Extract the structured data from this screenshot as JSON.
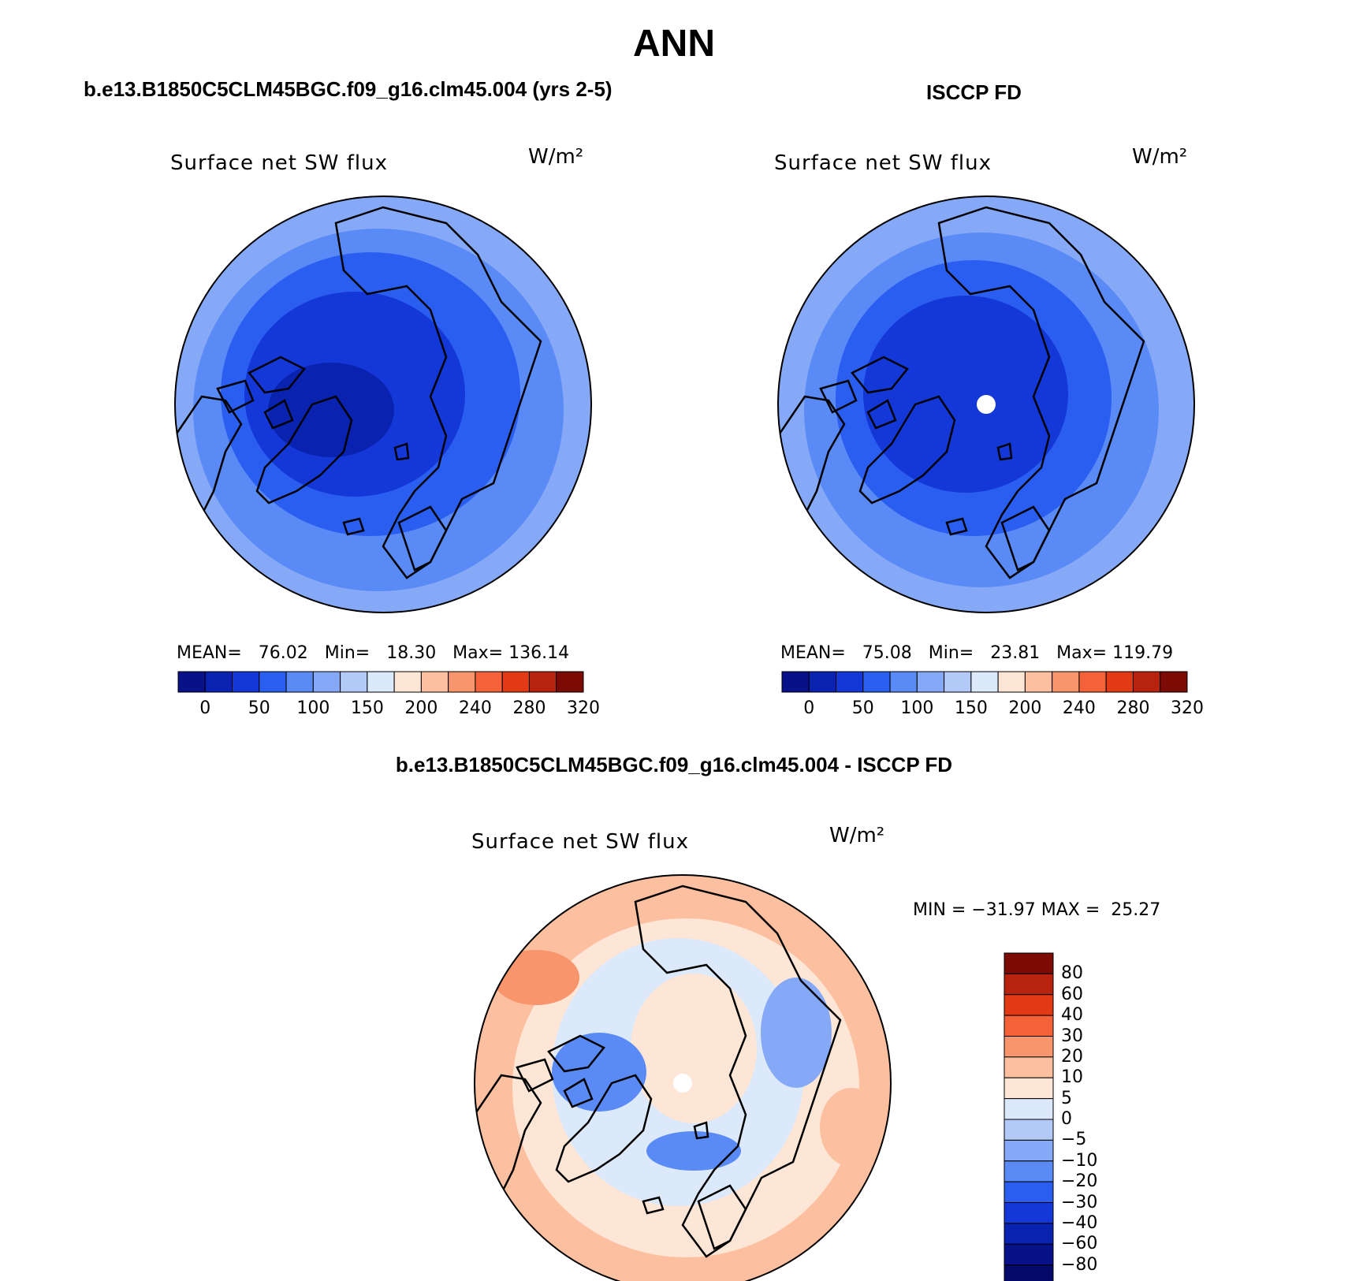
{
  "figure": {
    "title": "ANN",
    "left_panel_title": "b.e13.B1850C5CLM45BGC.f09_g16.clm45.004 (yrs 2-5)",
    "right_panel_title": "ISCCP FD",
    "bottom_panel_title": "b.e13.B1850C5CLM45BGC.f09_g16.clm45.004 - ISCCP FD"
  },
  "panels": {
    "left": {
      "label": "Surface net SW flux",
      "units": "W/m²",
      "stats": "MEAN=   76.02   Min=   18.30   Max= 136.14",
      "colorbar_ticks": [
        "0",
        "50",
        "100",
        "150",
        "200",
        "240",
        "280",
        "320"
      ]
    },
    "right": {
      "label": "Surface net SW flux",
      "units": "W/m²",
      "stats": "MEAN=   75.08   Min=   23.81   Max= 119.79",
      "colorbar_ticks": [
        "0",
        "50",
        "100",
        "150",
        "200",
        "240",
        "280",
        "320"
      ]
    },
    "bottom": {
      "label": "Surface net SW flux",
      "units": "W/m²",
      "stats": "MIN = −31.97 MAX =  25.27",
      "colorbar_ticks": [
        "80",
        "60",
        "40",
        "30",
        "20",
        "10",
        "5",
        "0",
        "−5",
        "−10",
        "−20",
        "−30",
        "−40",
        "−60",
        "−80"
      ]
    }
  },
  "colors": {
    "abs_scale": [
      "#08118a",
      "#0a22b0",
      "#1438d8",
      "#2a5ef0",
      "#5a8af5",
      "#86a9f7",
      "#b3caf9",
      "#dce9fb",
      "#fde6d6",
      "#fcc0a0",
      "#f9956c",
      "#f5623a",
      "#e23a14",
      "#b82310",
      "#7d0b05"
    ],
    "diff_scale": [
      "#7d0b05",
      "#b82310",
      "#e23a14",
      "#f5623a",
      "#f9956c",
      "#fcc0a0",
      "#fde6d6",
      "#dce9fb",
      "#b3caf9",
      "#86a9f7",
      "#5a8af5",
      "#2a5ef0",
      "#1438d8",
      "#0a22b0",
      "#08118a",
      "#050a6a"
    ]
  }
}
